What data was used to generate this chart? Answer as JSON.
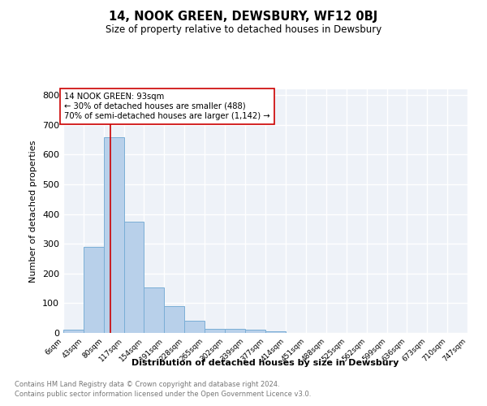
{
  "title": "14, NOOK GREEN, DEWSBURY, WF12 0BJ",
  "subtitle": "Size of property relative to detached houses in Dewsbury",
  "xlabel": "Distribution of detached houses by size in Dewsbury",
  "ylabel": "Number of detached properties",
  "bar_edges": [
    6,
    43,
    80,
    117,
    154,
    191,
    228,
    265,
    302,
    339,
    377,
    414,
    451,
    488,
    525,
    562,
    599,
    636,
    673,
    710,
    747
  ],
  "bar_heights": [
    10,
    290,
    660,
    375,
    152,
    89,
    41,
    14,
    14,
    10,
    5,
    0,
    0,
    0,
    0,
    0,
    0,
    0,
    0,
    0
  ],
  "bar_color": "#b8d0ea",
  "bar_edgecolor": "#7aaed6",
  "property_line_x": 93,
  "property_line_color": "#cc0000",
  "annotation_text": "14 NOOK GREEN: 93sqm\n← 30% of detached houses are smaller (488)\n70% of semi-detached houses are larger (1,142) →",
  "annotation_box_color": "#ffffff",
  "annotation_box_edgecolor": "#cc0000",
  "ylim": [
    0,
    820
  ],
  "yticks": [
    0,
    100,
    200,
    300,
    400,
    500,
    600,
    700,
    800
  ],
  "tick_labels": [
    "6sqm",
    "43sqm",
    "80sqm",
    "117sqm",
    "154sqm",
    "191sqm",
    "228sqm",
    "265sqm",
    "302sqm",
    "339sqm",
    "377sqm",
    "414sqm",
    "451sqm",
    "488sqm",
    "525sqm",
    "562sqm",
    "599sqm",
    "636sqm",
    "673sqm",
    "710sqm",
    "747sqm"
  ],
  "background_color": "#eef2f8",
  "grid_color": "#ffffff",
  "footnote1": "Contains HM Land Registry data © Crown copyright and database right 2024.",
  "footnote2": "Contains public sector information licensed under the Open Government Licence v3.0."
}
